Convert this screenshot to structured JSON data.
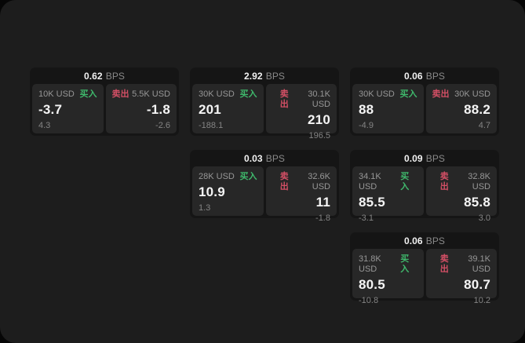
{
  "labels": {
    "buy": "买入",
    "sell": "卖出",
    "bps_unit": "BPS"
  },
  "colors": {
    "buy_green": "#3fb96c",
    "sell_red": "#d34f65",
    "panel_bg": "#1d1d1d",
    "card_bg": "#151515",
    "tile_bg": "#272727"
  },
  "cards": [
    {
      "bps": "0.62",
      "buy": {
        "amount": "10K USD",
        "price": "-3.7",
        "sub": "4.3"
      },
      "sell": {
        "amount": "5.5K USD",
        "price": "-1.8",
        "sub": "-2.6"
      }
    },
    {
      "bps": "2.92",
      "buy": {
        "amount": "30K USD",
        "price": "201",
        "sub": "-188.1"
      },
      "sell": {
        "amount": "30.1K USD",
        "price": "210",
        "sub": "196.5"
      }
    },
    {
      "bps": "0.06",
      "buy": {
        "amount": "30K USD",
        "price": "88",
        "sub": "-4.9"
      },
      "sell": {
        "amount": "30K USD",
        "price": "88.2",
        "sub": "4.7"
      }
    },
    {
      "bps": "0.03",
      "buy": {
        "amount": "28K USD",
        "price": "10.9",
        "sub": "1.3"
      },
      "sell": {
        "amount": "32.6K USD",
        "price": "11",
        "sub": "-1.8"
      }
    },
    {
      "bps": "0.09",
      "buy": {
        "amount": "34.1K USD",
        "price": "85.5",
        "sub": "-3.1"
      },
      "sell": {
        "amount": "32.8K USD",
        "price": "85.8",
        "sub": "3.0"
      }
    },
    {
      "bps": "0.06",
      "buy": {
        "amount": "31.8K USD",
        "price": "80.5",
        "sub": "-10.8"
      },
      "sell": {
        "amount": "39.1K USD",
        "price": "80.7",
        "sub": "10.2"
      }
    }
  ]
}
